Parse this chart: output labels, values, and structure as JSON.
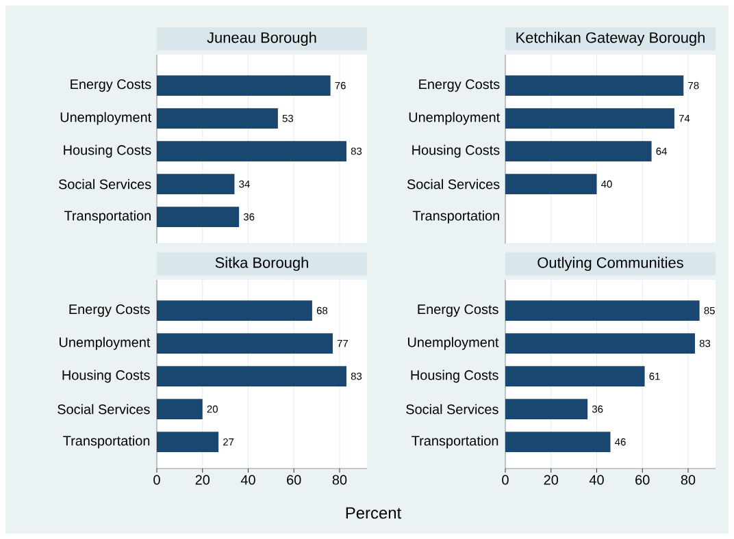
{
  "chart_data": [
    {
      "type": "bar",
      "orientation": "horizontal",
      "title": "Juneau Borough",
      "categories": [
        "Energy Costs",
        "Unemployment",
        "Housing Costs",
        "Social Services",
        "Transportation"
      ],
      "values": [
        76,
        53,
        83,
        34,
        36
      ],
      "color": "#1a476f",
      "xlim": [
        0,
        92
      ],
      "xticks": [
        0,
        20,
        40,
        60,
        80
      ],
      "grid": "x",
      "data_labels": true,
      "tick_labels": "y"
    },
    {
      "type": "bar",
      "orientation": "horizontal",
      "title": "Ketchikan Gateway Borough",
      "categories": [
        "Energy Costs",
        "Unemployment",
        "Housing Costs",
        "Social Services",
        "Transportation"
      ],
      "values": [
        78,
        74,
        64,
        40,
        null
      ],
      "color": "#1a476f",
      "xlim": [
        0,
        92
      ],
      "xticks": [
        0,
        20,
        40,
        60,
        80
      ],
      "grid": "x",
      "data_labels": true,
      "tick_labels": "y"
    },
    {
      "type": "bar",
      "orientation": "horizontal",
      "title": "Sitka Borough",
      "xlabel": "Percent",
      "categories": [
        "Energy Costs",
        "Unemployment",
        "Housing Costs",
        "Social Services",
        "Transportation"
      ],
      "values": [
        68,
        77,
        83,
        20,
        27
      ],
      "color": "#1a476f",
      "xlim": [
        0,
        92
      ],
      "xticks": [
        0,
        20,
        40,
        60,
        80
      ],
      "grid": "x",
      "data_labels": true
    },
    {
      "type": "bar",
      "orientation": "horizontal",
      "title": "Outlying Communities",
      "categories": [
        "Energy Costs",
        "Unemployment",
        "Housing Costs",
        "Social Services",
        "Transportation"
      ],
      "values": [
        85,
        83,
        61,
        36,
        46
      ],
      "color": "#1a476f",
      "xlim": [
        0,
        92
      ],
      "xticks": [
        0,
        20,
        40,
        60,
        80
      ],
      "grid": "x",
      "data_labels": true
    }
  ]
}
